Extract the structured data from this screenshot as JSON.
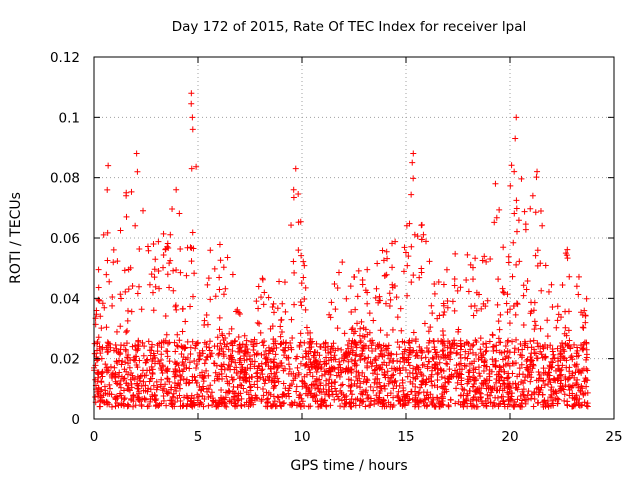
{
  "chart_data": {
    "type": "scatter",
    "title": "Day 172 of 2015, Rate Of TEC Index for receiver lpal",
    "xlabel": "GPS time / hours",
    "ylabel": "ROTI / TECUs",
    "xlim": [
      0,
      25
    ],
    "ylim": [
      0,
      0.12
    ],
    "xticks": [
      0,
      5,
      10,
      15,
      20,
      25
    ],
    "xtick_labels": [
      "0",
      "5",
      "10",
      "15",
      "20",
      "25"
    ],
    "yticks": [
      0,
      0.02,
      0.04,
      0.06,
      0.08,
      0.1,
      0.12
    ],
    "ytick_labels": [
      "0",
      "0.02",
      "0.04",
      "0.06",
      "0.08",
      "0.1",
      "0.12"
    ],
    "grid": true,
    "marker": "+",
    "color": "#ff0000",
    "series": [
      {
        "name": "ROTI",
        "x_range_hours": [
          0,
          23.75
        ],
        "typical_range": [
          0.005,
          0.03
        ],
        "envelope": [
          {
            "x": 0.0,
            "y": 0.04
          },
          {
            "x": 0.5,
            "y": 0.063
          },
          {
            "x": 0.7,
            "y": 0.084
          },
          {
            "x": 1.0,
            "y": 0.055
          },
          {
            "x": 1.6,
            "y": 0.076
          },
          {
            "x": 2.1,
            "y": 0.088
          },
          {
            "x": 2.6,
            "y": 0.06
          },
          {
            "x": 3.4,
            "y": 0.064
          },
          {
            "x": 3.9,
            "y": 0.076
          },
          {
            "x": 4.4,
            "y": 0.075
          },
          {
            "x": 4.7,
            "y": 0.108
          },
          {
            "x": 5.2,
            "y": 0.065
          },
          {
            "x": 5.7,
            "y": 0.058
          },
          {
            "x": 6.5,
            "y": 0.058
          },
          {
            "x": 7.0,
            "y": 0.04
          },
          {
            "x": 7.5,
            "y": 0.03
          },
          {
            "x": 8.1,
            "y": 0.05
          },
          {
            "x": 8.7,
            "y": 0.048
          },
          {
            "x": 9.2,
            "y": 0.05
          },
          {
            "x": 9.7,
            "y": 0.083
          },
          {
            "x": 10.3,
            "y": 0.04
          },
          {
            "x": 10.8,
            "y": 0.02
          },
          {
            "x": 11.3,
            "y": 0.045
          },
          {
            "x": 11.7,
            "y": 0.06
          },
          {
            "x": 12.3,
            "y": 0.05
          },
          {
            "x": 12.9,
            "y": 0.056
          },
          {
            "x": 13.4,
            "y": 0.05
          },
          {
            "x": 14.0,
            "y": 0.058
          },
          {
            "x": 14.5,
            "y": 0.06
          },
          {
            "x": 15.0,
            "y": 0.067
          },
          {
            "x": 15.4,
            "y": 0.088
          },
          {
            "x": 16.0,
            "y": 0.06
          },
          {
            "x": 16.5,
            "y": 0.045
          },
          {
            "x": 17.2,
            "y": 0.052
          },
          {
            "x": 17.6,
            "y": 0.06
          },
          {
            "x": 18.0,
            "y": 0.055
          },
          {
            "x": 18.6,
            "y": 0.053
          },
          {
            "x": 19.3,
            "y": 0.078
          },
          {
            "x": 19.7,
            "y": 0.06
          },
          {
            "x": 20.3,
            "y": 0.1
          },
          {
            "x": 20.8,
            "y": 0.065
          },
          {
            "x": 21.3,
            "y": 0.082
          },
          {
            "x": 21.8,
            "y": 0.048
          },
          {
            "x": 22.3,
            "y": 0.045
          },
          {
            "x": 22.8,
            "y": 0.058
          },
          {
            "x": 23.3,
            "y": 0.055
          },
          {
            "x": 23.75,
            "y": 0.05
          }
        ],
        "spikes": [
          {
            "x": 0.68,
            "y": 0.084
          },
          {
            "x": 2.05,
            "y": 0.088
          },
          {
            "x": 3.95,
            "y": 0.076
          },
          {
            "x": 4.68,
            "y": 0.108
          },
          {
            "x": 4.73,
            "y": 0.1
          },
          {
            "x": 4.75,
            "y": 0.096
          },
          {
            "x": 4.7,
            "y": 0.083
          },
          {
            "x": 9.7,
            "y": 0.083
          },
          {
            "x": 9.6,
            "y": 0.076
          },
          {
            "x": 15.35,
            "y": 0.088
          },
          {
            "x": 15.3,
            "y": 0.085
          },
          {
            "x": 19.3,
            "y": 0.078
          },
          {
            "x": 20.3,
            "y": 0.1
          },
          {
            "x": 20.25,
            "y": 0.093
          },
          {
            "x": 20.2,
            "y": 0.082
          },
          {
            "x": 21.3,
            "y": 0.082
          },
          {
            "x": 1.55,
            "y": 0.075
          },
          {
            "x": 21.1,
            "y": 0.074
          }
        ]
      }
    ]
  }
}
